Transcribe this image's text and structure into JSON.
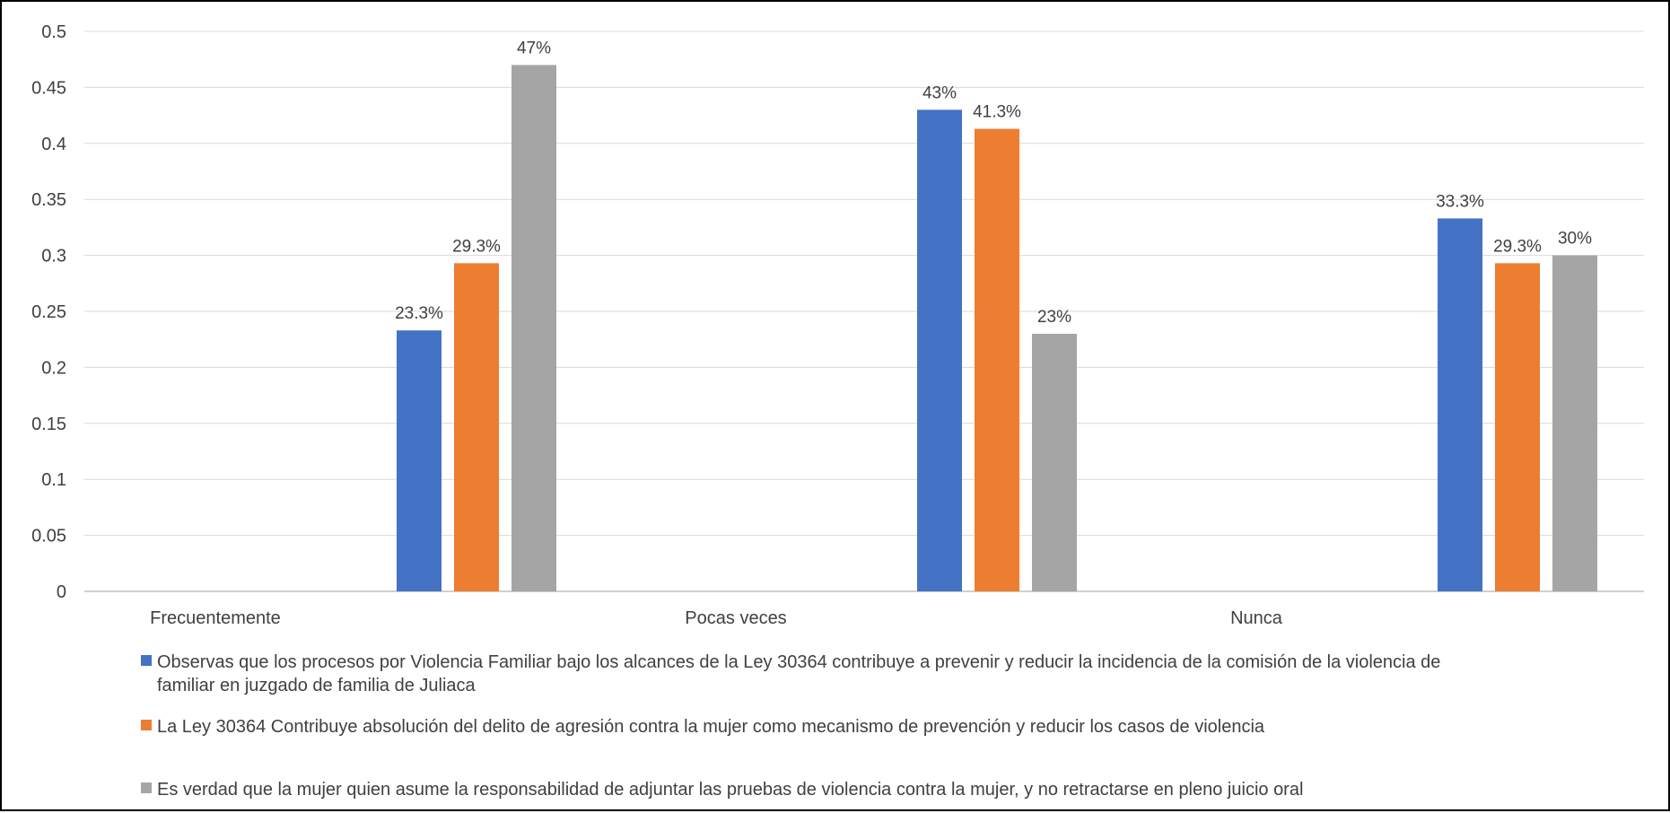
{
  "chart_data": {
    "type": "bar",
    "categories": [
      "Frecuentemente",
      "Pocas veces",
      "Nunca"
    ],
    "ylim": [
      0,
      0.5
    ],
    "yticks": [
      "0",
      "0.05",
      "0.1",
      "0.15",
      "0.2",
      "0.25",
      "0.3",
      "0.35",
      "0.4",
      "0.45",
      "0.5"
    ],
    "grid": true,
    "legend_position": "bottom",
    "series": [
      {
        "name": "Observas que los procesos por Violencia Familiar bajo los alcances de la Ley 30364 contribuye a prevenir y reducir la incidencia de la comisión de la violencia de familiar en juzgado de familia de Juliaca",
        "legend_lines": [
          "Observas que los procesos por Violencia Familiar bajo los alcances de la Ley 30364 contribuye a prevenir y reducir la incidencia de la comisión de la violencia de",
          "familiar en juzgado de familia de Juliaca"
        ],
        "color": "#4472C4",
        "values": [
          0.233,
          0.43,
          0.333
        ],
        "labels": [
          "23.3%",
          "43%",
          "33.3%"
        ]
      },
      {
        "name": "La Ley 30364 Contribuye absolución del delito de agresión contra la mujer como mecanismo de prevención y reducir los casos de violencia",
        "legend_lines": [
          "La Ley 30364 Contribuye absolución del delito de agresión contra la mujer como mecanismo de prevención y reducir los casos de violencia"
        ],
        "color": "#ED7D31",
        "values": [
          0.293,
          0.413,
          0.293
        ],
        "labels": [
          "29.3%",
          "41.3%",
          "29.3%"
        ]
      },
      {
        "name": "Es verdad que la mujer quien asume la responsabilidad de adjuntar las pruebas de violencia contra la mujer, y no retractarse en pleno juicio oral",
        "legend_lines": [
          "Es verdad que la mujer quien asume la responsabilidad de adjuntar las pruebas de violencia contra la mujer, y no retractarse en pleno juicio oral"
        ],
        "color": "#A5A5A5",
        "values": [
          0.47,
          0.23,
          0.3
        ],
        "labels": [
          "47%",
          "23%",
          "30%"
        ]
      }
    ]
  }
}
